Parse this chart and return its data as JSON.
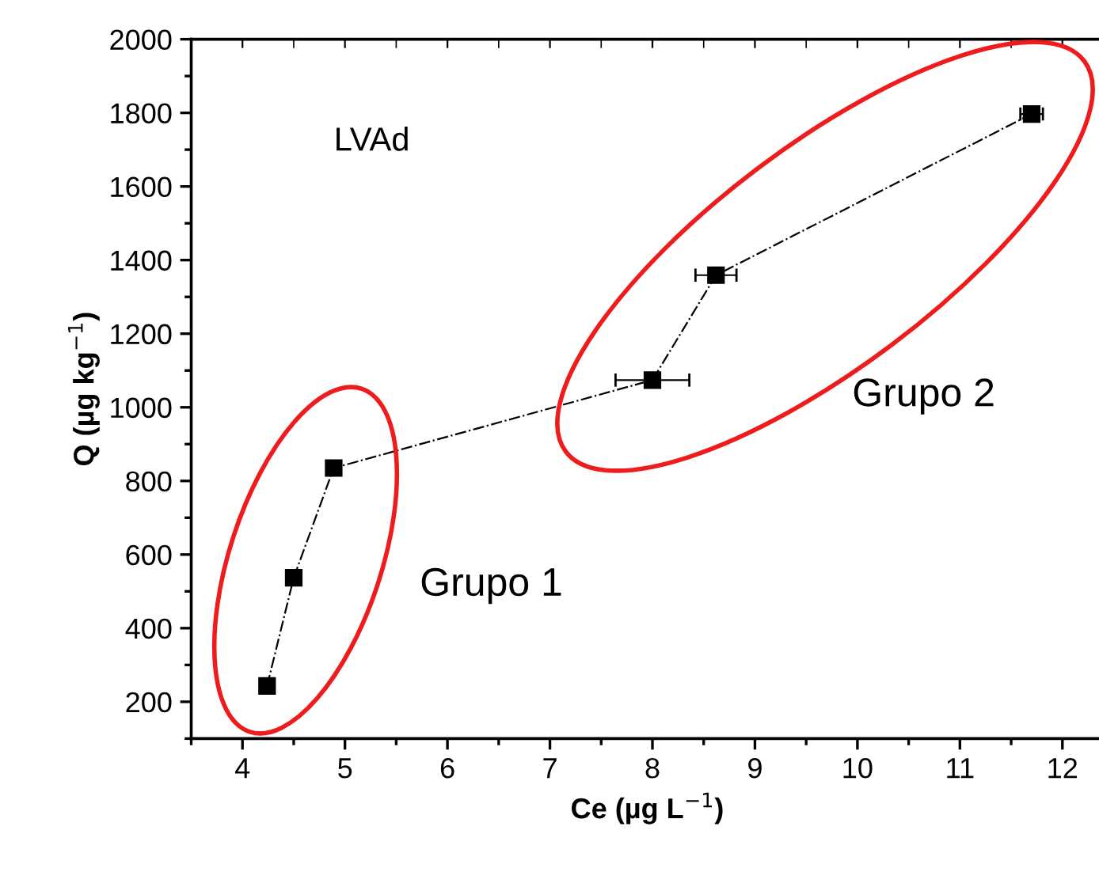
{
  "chart_data": {
    "type": "line",
    "xlabel": "Ce (µg L$^{−1}$)",
    "ylabel": "Q (µg kg$^{−1}$)",
    "x": [
      4.24,
      4.5,
      4.89,
      8.0,
      8.62,
      11.7
    ],
    "series": [
      {
        "color": "#000000",
        "values": [
          243,
          537,
          835,
          1074,
          1359,
          1797
        ],
        "xerrors": [
          0.07,
          null,
          null,
          0.36,
          0.2,
          0.11
        ]
      }
    ],
    "marker": "square",
    "line_style": "dashdot",
    "xlim": [
      3.5,
      12.4
    ],
    "xticks": [
      4,
      5,
      6,
      7,
      8,
      9,
      10,
      11,
      12
    ],
    "ylim": [
      100,
      2000
    ],
    "yticks": [
      200,
      400,
      600,
      800,
      1000,
      1200,
      1400,
      1600,
      1800,
      2000
    ],
    "grid": false,
    "legend": false,
    "annotations": [
      "LVAd",
      "Grupo 1",
      "Grupo 2"
    ]
  }
}
